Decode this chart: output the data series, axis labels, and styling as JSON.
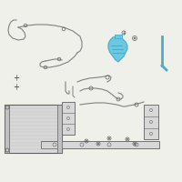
{
  "bg_color": "#f0f0eb",
  "line_color": "#808080",
  "line_color_dark": "#606060",
  "highlight_fill": "#6bc8e0",
  "highlight_edge": "#4aadcc",
  "white": "#ffffff",
  "gray_light": "#d8d8d8",
  "gray_med": "#c0c0c0"
}
